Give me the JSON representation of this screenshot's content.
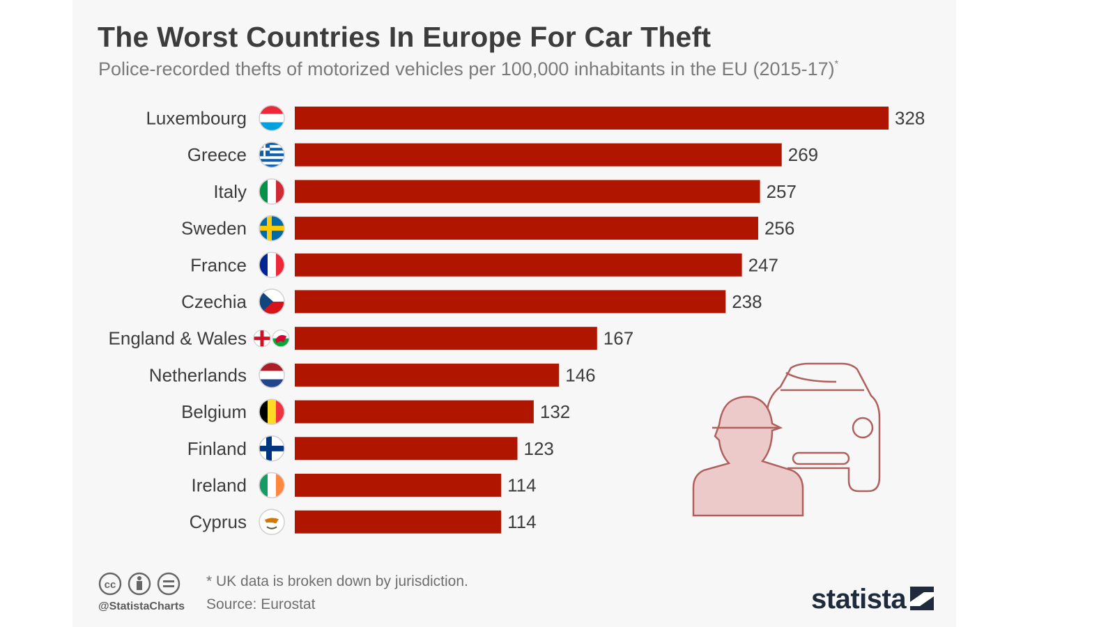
{
  "title": "The Worst Countries In Europe For Car Theft",
  "subtitle": "Police-recorded thefts of motorized vehicles per 100,000 inhabitants in the EU (2015-17)",
  "subtitle_marker": "*",
  "footnote": "* UK data is broken down by jurisdiction.",
  "source": "Source: Eurostat",
  "handle": "@StatistaCharts",
  "brand": "statista",
  "colors": {
    "bar": "#b01500",
    "text": "#3c3c3c",
    "muted": "#7a7a7a",
    "illustration": "#eac6c6"
  },
  "chart_data": {
    "type": "bar",
    "orientation": "horizontal",
    "categories": [
      "Luxembourg",
      "Greece",
      "Italy",
      "Sweden",
      "France",
      "Czechia",
      "England & Wales",
      "Netherlands",
      "Belgium",
      "Finland",
      "Ireland",
      "Cyprus"
    ],
    "values": [
      328,
      269,
      257,
      256,
      247,
      238,
      167,
      146,
      132,
      123,
      114,
      114
    ],
    "flags": [
      "luxembourg-flag-icon",
      "greece-flag-icon",
      "italy-flag-icon",
      "sweden-flag-icon",
      "france-flag-icon",
      "czechia-flag-icon",
      "england-wales-flag-icon",
      "netherlands-flag-icon",
      "belgium-flag-icon",
      "finland-flag-icon",
      "ireland-flag-icon",
      "cyprus-flag-icon"
    ],
    "xlim": [
      0,
      328
    ],
    "grid": false,
    "legend": "none"
  }
}
